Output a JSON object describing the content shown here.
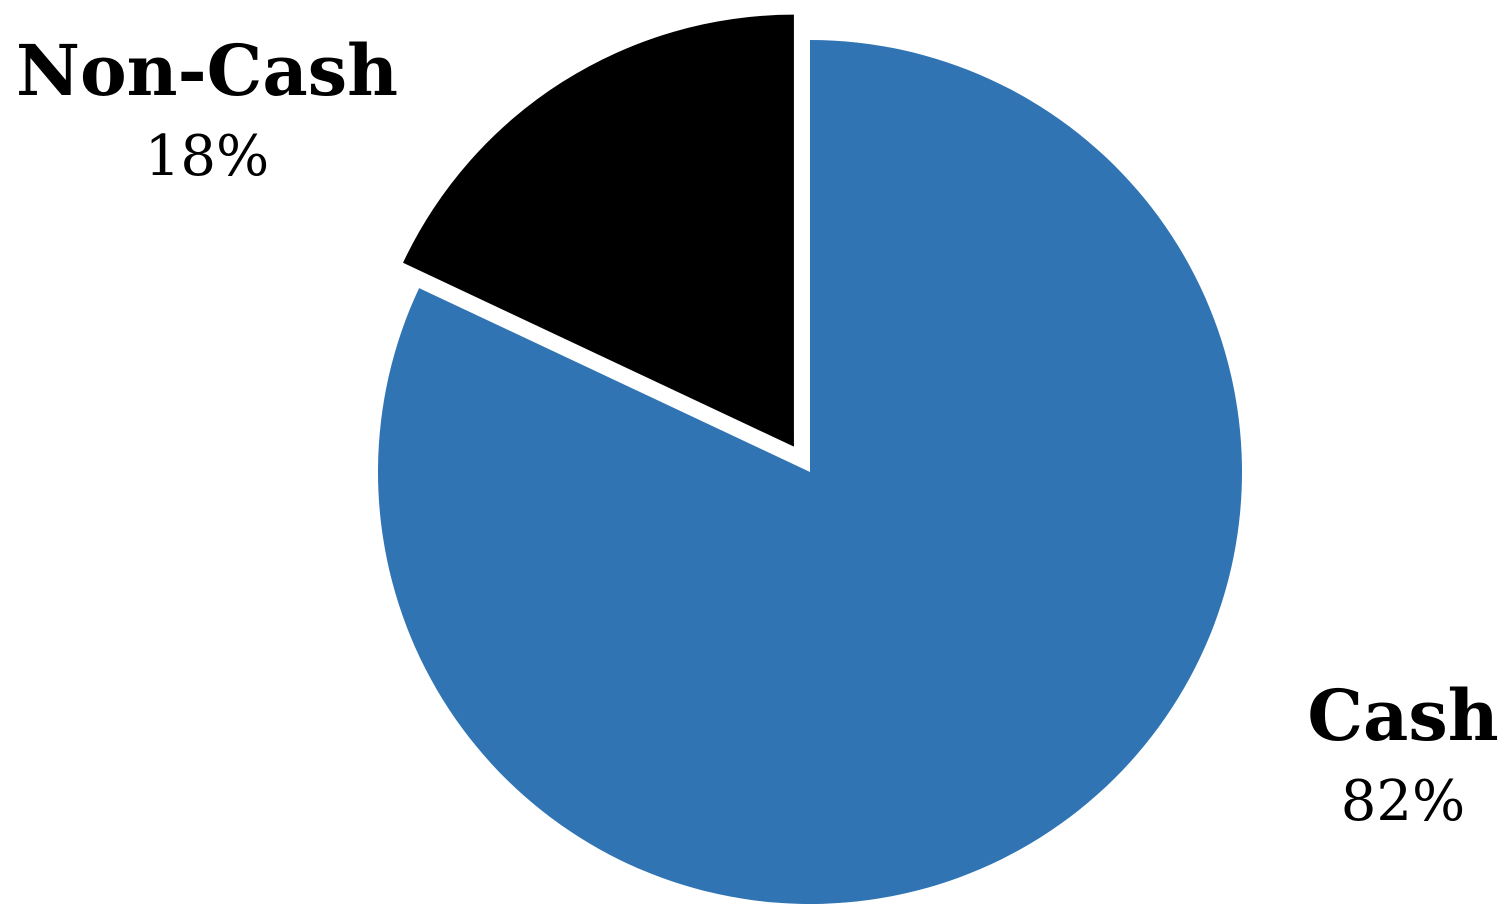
{
  "chart_data": {
    "type": "pie",
    "title": "",
    "slices": [
      {
        "label": "Cash",
        "value": 82,
        "value_label": "82%",
        "color": "#3074B4",
        "exploded": false
      },
      {
        "label": "Non-Cash",
        "value": 18,
        "value_label": "18%",
        "color": "#000000",
        "exploded": true
      }
    ],
    "start_angle": "12 o'clock",
    "direction": "clockwise",
    "legend": "none",
    "label_placement": "outside"
  }
}
